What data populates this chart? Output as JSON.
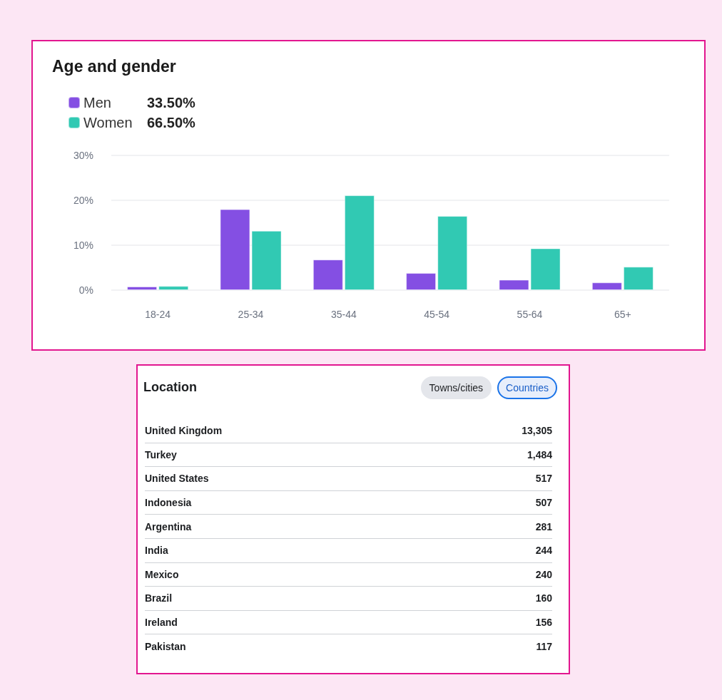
{
  "chart_data": [
    {
      "type": "bar",
      "title": "Age and gender",
      "categories": [
        "18-24",
        "25-34",
        "35-44",
        "45-54",
        "55-64",
        "65+"
      ],
      "series": [
        {
          "name": "Men",
          "color": "#844fe3",
          "values": [
            0.8,
            18.0,
            6.8,
            3.8,
            2.3,
            1.7
          ]
        },
        {
          "name": "Women",
          "color": "#31c9b3",
          "values": [
            0.9,
            13.2,
            21.1,
            16.5,
            9.3,
            5.2
          ]
        }
      ],
      "annotations": [
        "33.50%",
        "66.50%"
      ],
      "ylim": [
        0,
        30
      ],
      "yticks": [
        {
          "value": 0,
          "label": "0%"
        },
        {
          "value": 10,
          "label": "10%"
        },
        {
          "value": 20,
          "label": "20%"
        },
        {
          "value": 30,
          "label": "30%"
        }
      ],
      "grid": "y",
      "legend": "top left"
    },
    {
      "type": "other",
      "title": "Location",
      "annotations": [
        "Towns/cities",
        "Countries"
      ],
      "categories": [
        "United Kingdom",
        "Turkey",
        "United States",
        "Indonesia",
        "Argentina",
        "India",
        "Mexico",
        "Brazil",
        "Ireland",
        "Pakistan"
      ],
      "value_labels": [
        "13,305",
        "1,484",
        "517",
        "507",
        "281",
        "244",
        "240",
        "160",
        "156",
        "117"
      ]
    }
  ]
}
